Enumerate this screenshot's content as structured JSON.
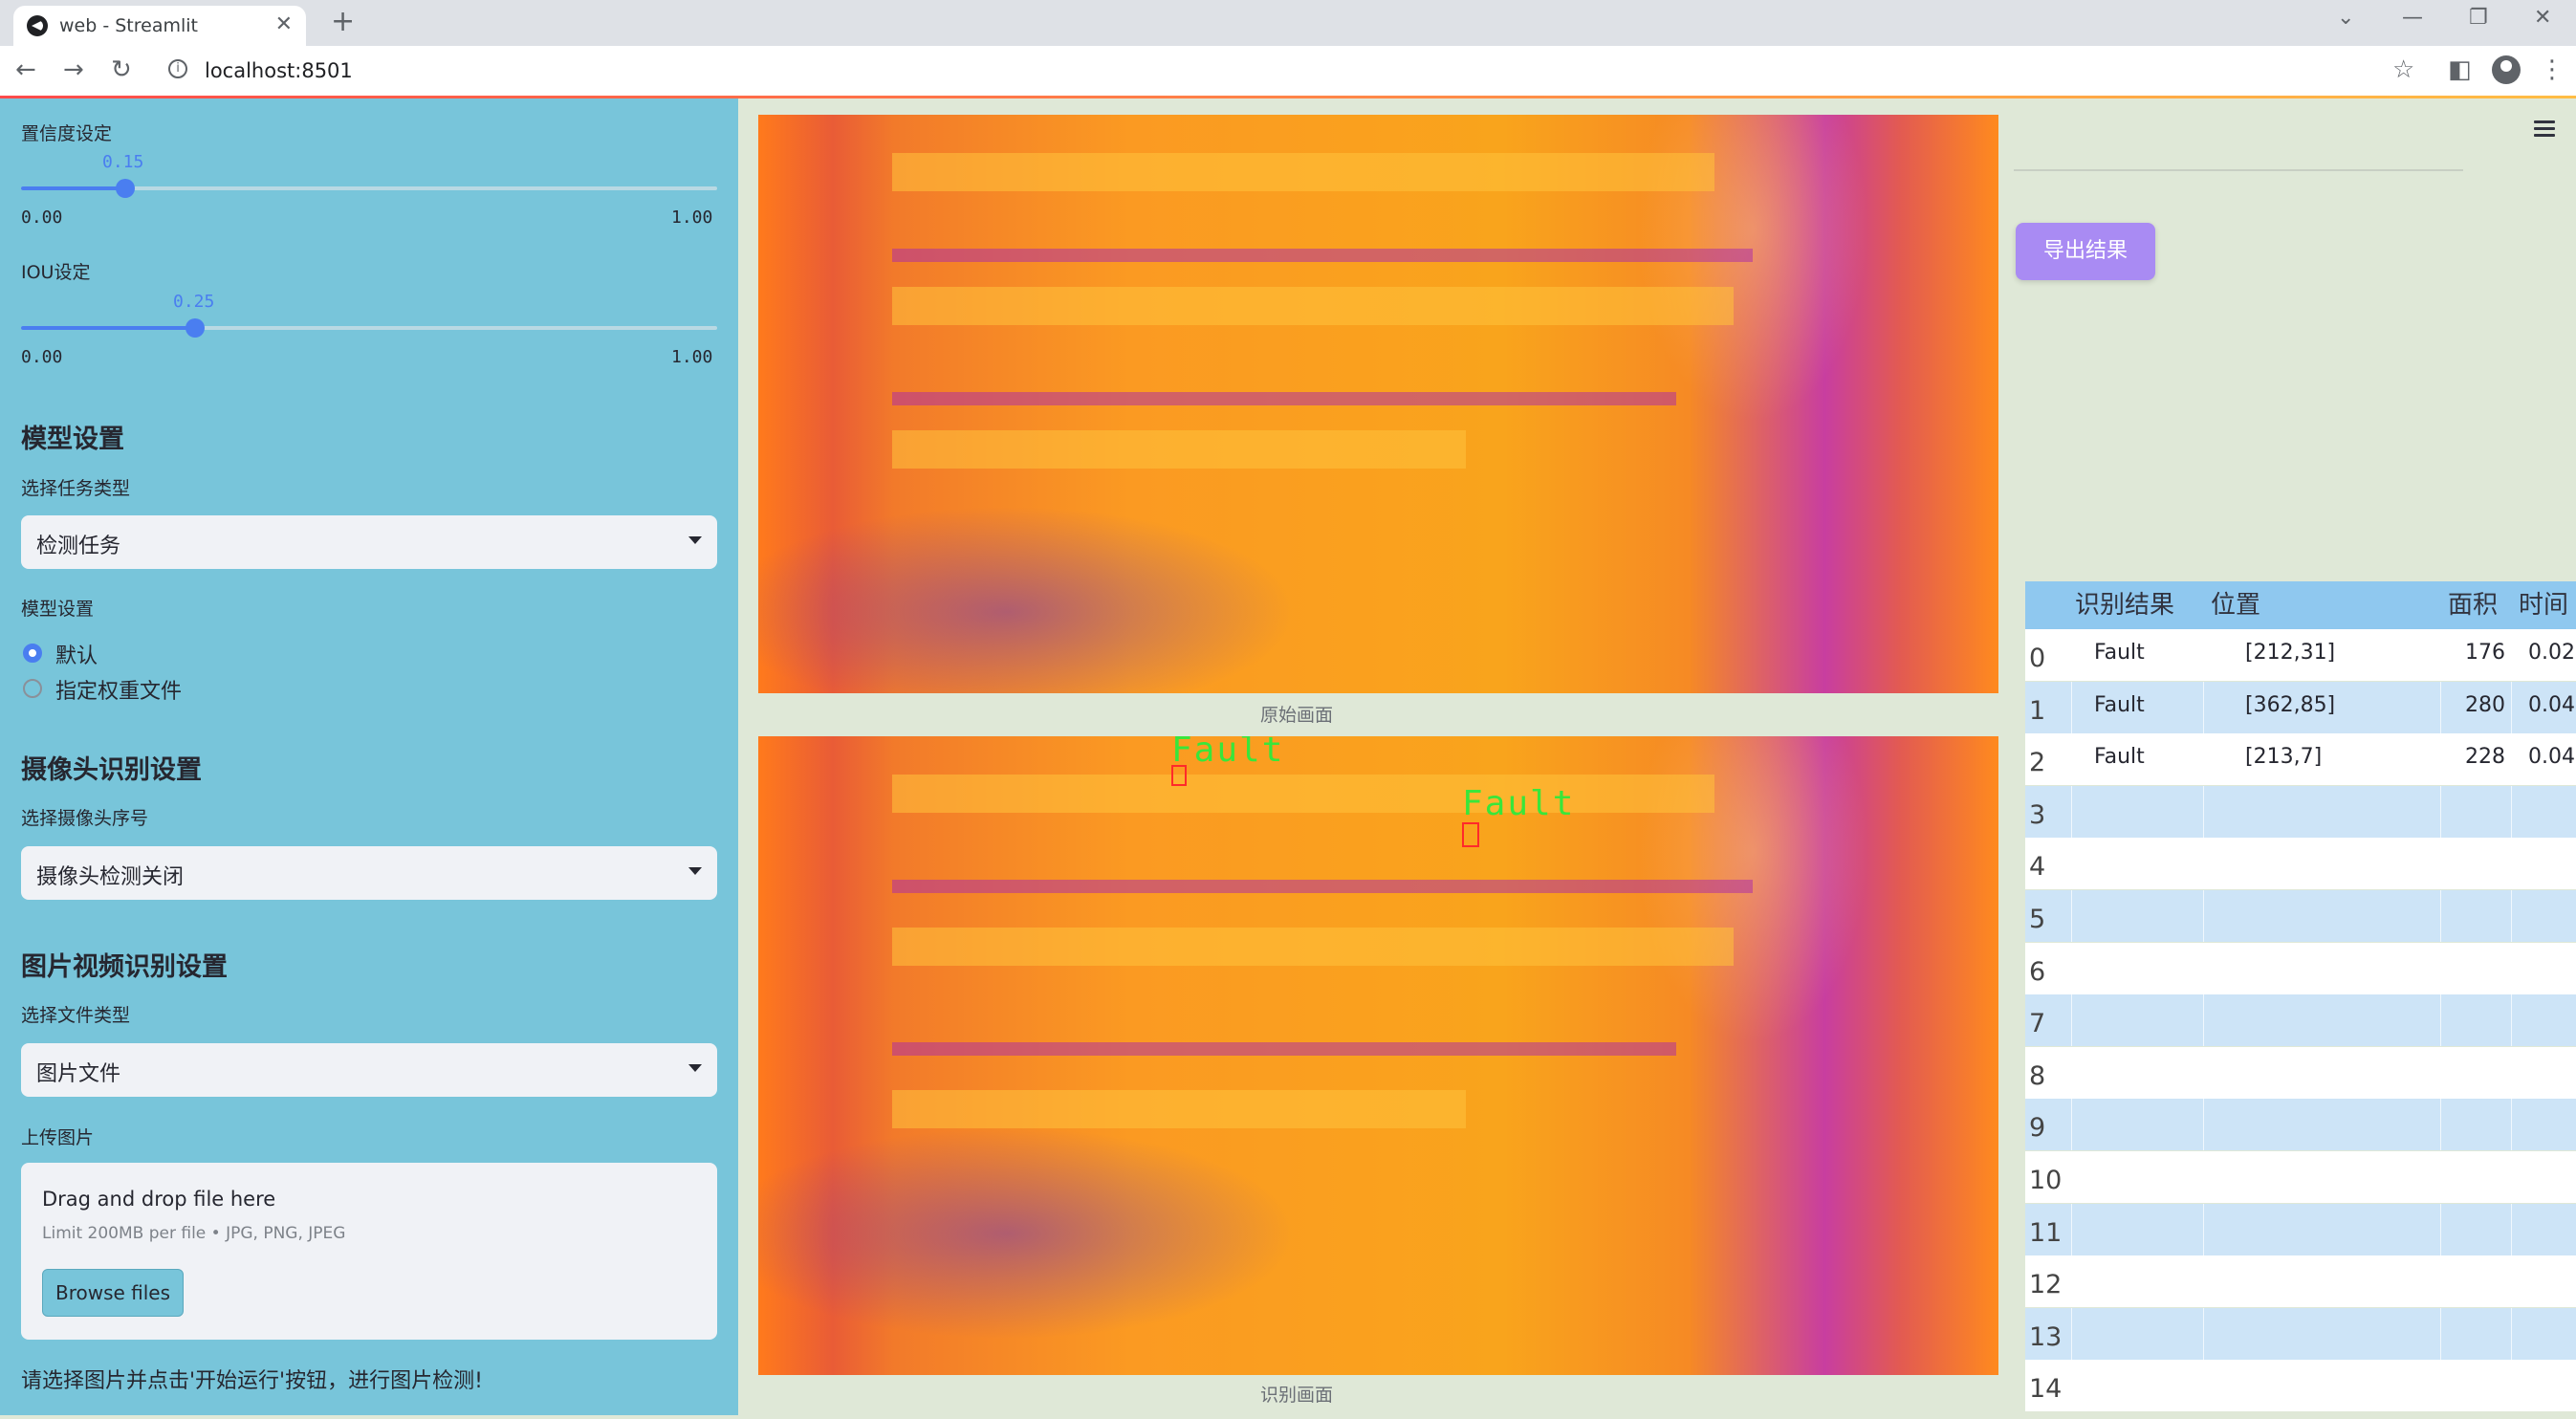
{
  "browser": {
    "tab_title": "web - Streamlit",
    "url": "localhost:8501"
  },
  "sidebar": {
    "confidence": {
      "label": "置信度设定",
      "value": "0.15",
      "fraction": 0.15,
      "min": "0.00",
      "max": "1.00"
    },
    "iou": {
      "label": "IOU设定",
      "value": "0.25",
      "fraction": 0.25,
      "min": "0.00",
      "max": "1.00"
    },
    "model_section": "模型设置",
    "task_label": "选择任务类型",
    "task_value": "检测任务",
    "model_label": "模型设置",
    "model_options": [
      "默认",
      "指定权重文件"
    ],
    "model_selected": 0,
    "camera_section": "摄像头识别设置",
    "camera_label": "选择摄像头序号",
    "camera_value": "摄像头检测关闭",
    "file_section": "图片视频识别设置",
    "file_type_label": "选择文件类型",
    "file_type_value": "图片文件",
    "upload_label": "上传图片",
    "upload_title": "Drag and drop file here",
    "upload_limit": "Limit 200MB per file • JPG, PNG, JPEG",
    "browse_label": "Browse files",
    "hint": "请选择图片并点击'开始运行'按钮，进行图片检测!"
  },
  "main": {
    "original_caption": "原始画面",
    "result_caption": "识别画面",
    "detections": [
      {
        "label": "Fault"
      },
      {
        "label": "Fault"
      }
    ]
  },
  "right": {
    "export_label": "导出结果",
    "table": {
      "columns": [
        "识别结果",
        "位置",
        "面积",
        "时间"
      ],
      "rows": [
        {
          "idx": "0",
          "result": "Fault",
          "pos": "[212,31]",
          "area": "176",
          "time": "0.02"
        },
        {
          "idx": "1",
          "result": "Fault",
          "pos": "[362,85]",
          "area": "280",
          "time": "0.04"
        },
        {
          "idx": "2",
          "result": "Fault",
          "pos": "[213,7]",
          "area": "228",
          "time": "0.04"
        },
        {
          "idx": "3"
        },
        {
          "idx": "4"
        },
        {
          "idx": "5"
        },
        {
          "idx": "6"
        },
        {
          "idx": "7"
        },
        {
          "idx": "8"
        },
        {
          "idx": "9"
        },
        {
          "idx": "10"
        },
        {
          "idx": "11"
        },
        {
          "idx": "12"
        },
        {
          "idx": "13"
        },
        {
          "idx": "14"
        }
      ]
    }
  }
}
